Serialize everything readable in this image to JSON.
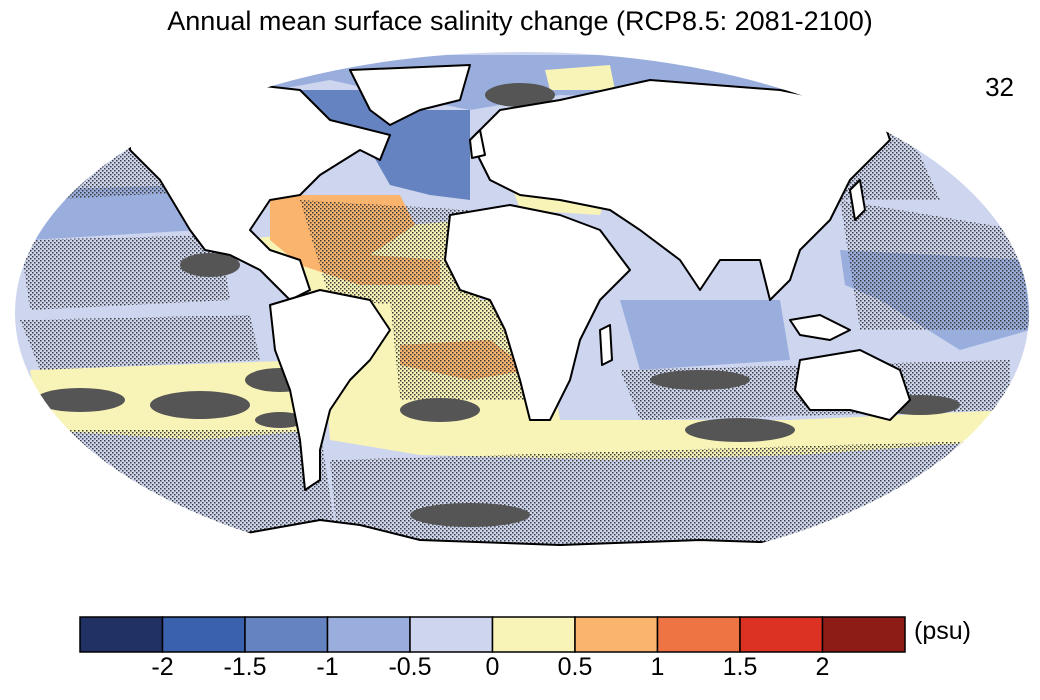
{
  "title": "Annual mean surface salinity change (RCP8.5: 2081-2100)",
  "model_count": "32",
  "colorbar": {
    "unit": "(psu)",
    "ticks": [
      "-2",
      "-1.5",
      "-1",
      "-0.5",
      "0",
      "0.5",
      "1",
      "1.5",
      "2"
    ],
    "bins": [
      {
        "from": null,
        "to": -2,
        "color": "#223163"
      },
      {
        "from": -2,
        "to": -1.5,
        "color": "#3a61ad"
      },
      {
        "from": -1.5,
        "to": -1,
        "color": "#6683c1"
      },
      {
        "from": -1,
        "to": -0.5,
        "color": "#9aaede"
      },
      {
        "from": -0.5,
        "to": 0,
        "color": "#cdd5ef"
      },
      {
        "from": 0,
        "to": 0.5,
        "color": "#f8f3b6"
      },
      {
        "from": 0.5,
        "to": 1,
        "color": "#fab46d"
      },
      {
        "from": 1,
        "to": 1.5,
        "color": "#ee7543"
      },
      {
        "from": 1.5,
        "to": 2,
        "color": "#dc3223"
      },
      {
        "from": 2,
        "to": null,
        "color": "#8d1c17"
      }
    ]
  },
  "colors": {
    "ocean_base": "#cdd5ef",
    "land": "#ffffff",
    "coast": "#000000",
    "stipple": "#3a3a3a"
  }
}
